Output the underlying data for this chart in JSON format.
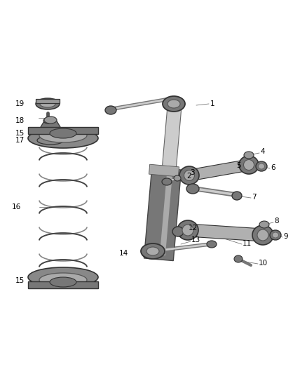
{
  "bg_color": "#ffffff",
  "figsize": [
    4.38,
    5.33
  ],
  "dpi": 100,
  "line_color": "#555555",
  "dark": "#333333",
  "mid": "#777777",
  "light": "#aaaaaa",
  "lighter": "#cccccc",
  "label_fs": 7.5
}
